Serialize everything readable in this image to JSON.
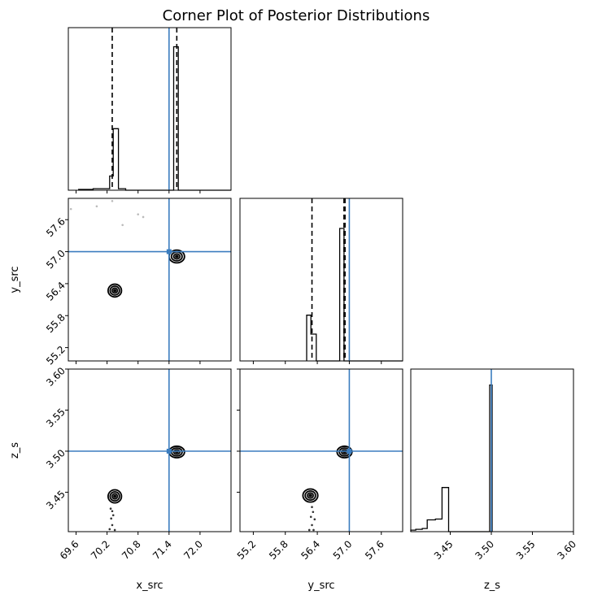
{
  "chart_data": {
    "type": "corner",
    "title": "Corner Plot of Posterior Distributions",
    "colors": {
      "truth": "#3b7dbf",
      "hist": "#000000",
      "contour_fill": "#d4d4d4"
    },
    "parameters": [
      {
        "name": "x_src",
        "label": "x_src",
        "range": [
          69.45,
          72.6
        ],
        "ticks": [
          "69.6",
          "70.2",
          "70.8",
          "71.4",
          "72.0"
        ],
        "truth": 71.4,
        "quantiles": [
          70.3,
          71.55
        ]
      },
      {
        "name": "y_src",
        "label": "y_src",
        "range": [
          54.95,
          58.0
        ],
        "ticks": [
          "55.2",
          "55.8",
          "56.4",
          "57.0",
          "57.6"
        ],
        "truth": 57.0,
        "quantiles": [
          56.3,
          56.9,
          56.92
        ]
      },
      {
        "name": "z_s",
        "label": "z_s",
        "range": [
          3.402,
          3.6
        ],
        "ticks": [
          "3.45",
          "3.50",
          "3.55",
          "3.60"
        ],
        "truth": 3.5,
        "quantiles": []
      }
    ],
    "histograms": [
      {
        "param": "x_src",
        "ymax": 1.0,
        "bins": [
          [
            69.65,
            69.93,
            0.005
          ],
          [
            69.93,
            70.25,
            0.01
          ],
          [
            70.25,
            70.32,
            0.09
          ],
          [
            70.32,
            70.42,
            0.39
          ],
          [
            70.42,
            70.56,
            0.01
          ],
          [
            70.56,
            71.49,
            0.0
          ],
          [
            71.49,
            71.58,
            0.91
          ],
          [
            71.58,
            72.6,
            0.0
          ]
        ]
      },
      {
        "param": "y_src",
        "ymax": 1.0,
        "bins": [
          [
            56.2,
            56.28,
            0.29
          ],
          [
            56.28,
            56.38,
            0.17
          ],
          [
            56.38,
            56.82,
            0.0
          ],
          [
            56.82,
            56.9,
            0.84
          ],
          [
            56.9,
            58.0,
            0.0
          ]
        ]
      },
      {
        "param": "z_s",
        "ymax": 1.0,
        "bins": [
          [
            3.402,
            3.408,
            0.01
          ],
          [
            3.408,
            3.416,
            0.015
          ],
          [
            3.416,
            3.422,
            0.02
          ],
          [
            3.422,
            3.432,
            0.075
          ],
          [
            3.432,
            3.44,
            0.08
          ],
          [
            3.44,
            3.448,
            0.28
          ],
          [
            3.448,
            3.498,
            0.0
          ],
          [
            3.498,
            3.501,
            0.93
          ]
        ]
      }
    ],
    "clusters": [
      {
        "pair": [
          "x_src",
          "y_src"
        ],
        "blobs": [
          {
            "cx": 70.35,
            "cy": 56.27,
            "sx": 0.13,
            "sy": 0.12
          },
          {
            "cx": 71.55,
            "cy": 56.91,
            "sx": 0.15,
            "sy": 0.12
          }
        ]
      },
      {
        "pair": [
          "x_src",
          "z_s"
        ],
        "blobs": [
          {
            "cx": 70.35,
            "cy": 3.445,
            "sx": 0.13,
            "sy": 0.008
          },
          {
            "cx": 71.55,
            "cy": 3.499,
            "sx": 0.15,
            "sy": 0.007
          }
        ]
      },
      {
        "pair": [
          "y_src",
          "z_s"
        ],
        "blobs": [
          {
            "cx": 56.27,
            "cy": 3.446,
            "sx": 0.14,
            "sy": 0.008
          },
          {
            "cx": 56.91,
            "cy": 3.499,
            "sx": 0.14,
            "sy": 0.007
          }
        ]
      }
    ],
    "outliers": [
      {
        "pair": [
          "x_src",
          "y_src"
        ],
        "points": [
          [
            69.5,
            57.8
          ],
          [
            70.0,
            57.85
          ],
          [
            70.3,
            57.95
          ],
          [
            70.8,
            57.7
          ],
          [
            70.9,
            57.65
          ],
          [
            70.5,
            57.5
          ]
        ]
      },
      {
        "pair": [
          "x_src",
          "z_s"
        ],
        "points": [
          [
            70.3,
            3.427
          ],
          [
            70.32,
            3.422
          ],
          [
            70.28,
            3.418
          ],
          [
            70.3,
            3.41
          ],
          [
            70.25,
            3.405
          ],
          [
            70.35,
            3.404
          ],
          [
            70.27,
            3.43
          ]
        ]
      },
      {
        "pair": [
          "y_src",
          "z_s"
        ],
        "points": [
          [
            56.3,
            3.432
          ],
          [
            56.32,
            3.426
          ],
          [
            56.28,
            3.42
          ],
          [
            56.35,
            3.417
          ],
          [
            56.3,
            3.41
          ],
          [
            56.25,
            3.404
          ],
          [
            56.33,
            3.404
          ]
        ]
      }
    ]
  }
}
